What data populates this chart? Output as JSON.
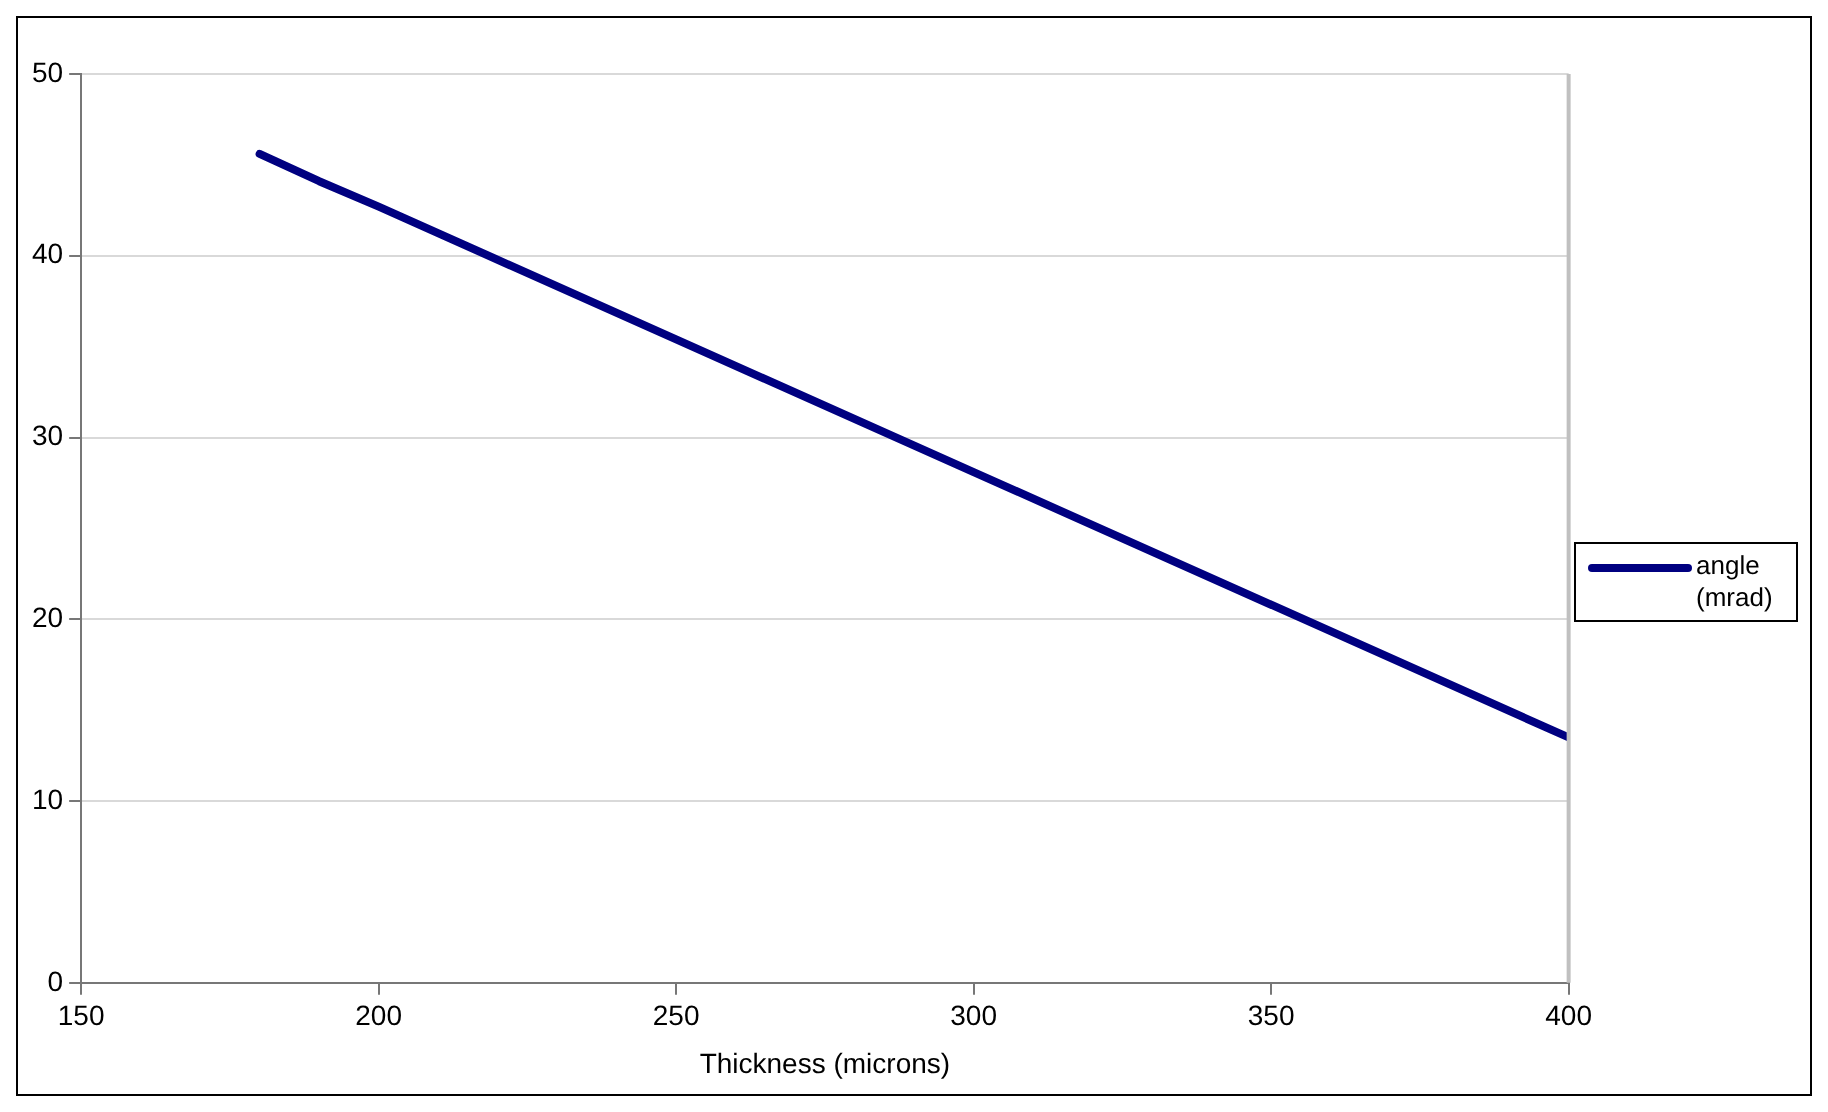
{
  "chart_data": {
    "type": "line",
    "xlabel": "Thickness (microns)",
    "xlim": [
      150,
      400
    ],
    "xticks": [
      150,
      200,
      250,
      300,
      350,
      400
    ],
    "ylim": [
      0,
      50
    ],
    "yticks": [
      0,
      10,
      20,
      30,
      40,
      50
    ],
    "grid": "y",
    "legend": "right",
    "marker": "none",
    "line_style": "solid",
    "series": [
      {
        "name": "angle (mrad)",
        "color": "#000080",
        "x": [
          180,
          190,
          200,
          250,
          300,
          350,
          400
        ],
        "values": [
          45.6,
          44.1,
          42.7,
          35.4,
          28.1,
          20.8,
          13.5
        ]
      }
    ]
  }
}
